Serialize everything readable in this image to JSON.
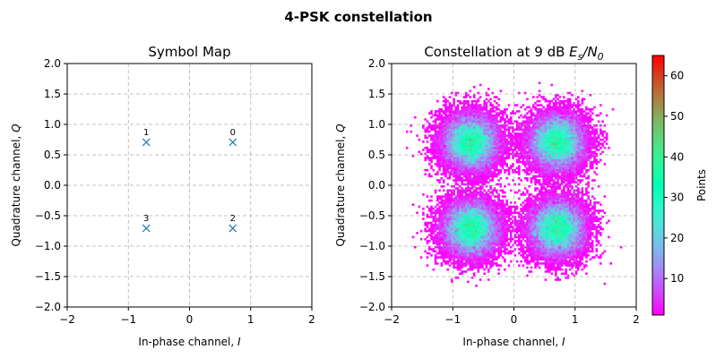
{
  "figure": {
    "title": "4-PSK constellation"
  },
  "chart_data": [
    {
      "type": "scatter",
      "title": "Symbol Map",
      "xlabel": "In-phase channel, I",
      "ylabel": "Quadrature channel, Q",
      "xlim": [
        -2,
        2
      ],
      "ylim": [
        -2,
        2
      ],
      "xticks": [
        -2,
        -1,
        0,
        1,
        2
      ],
      "yticks": [
        -2.0,
        -1.5,
        -1.0,
        -0.5,
        0.0,
        0.5,
        1.0,
        1.5,
        2.0
      ],
      "xtick_labels": [
        "−2",
        "−1",
        "0",
        "1",
        "2"
      ],
      "ytick_labels": [
        "−2.0",
        "−1.5",
        "−1.0",
        "−0.5",
        "0.0",
        "0.5",
        "1.0",
        "1.5",
        "2.0"
      ],
      "grid": true,
      "marker": "x",
      "color": "#1f77b4",
      "points": [
        {
          "label": "0",
          "x": 0.707,
          "y": 0.707
        },
        {
          "label": "1",
          "x": -0.707,
          "y": 0.707
        },
        {
          "label": "2",
          "x": 0.707,
          "y": -0.707
        },
        {
          "label": "3",
          "x": -0.707,
          "y": -0.707
        }
      ]
    },
    {
      "type": "heatmap",
      "title_prefix": "Constellation at 9 dB ",
      "title_math": "Es/N0",
      "xlabel": "In-phase channel, I",
      "ylabel": "Quadrature channel, Q",
      "xlim": [
        -2,
        2
      ],
      "ylim": [
        -2,
        2
      ],
      "xticks": [
        -2,
        -1,
        0,
        1,
        2
      ],
      "yticks": [
        -2.0,
        -1.5,
        -1.0,
        -0.5,
        0.0,
        0.5,
        1.0,
        1.5,
        2.0
      ],
      "xtick_labels": [
        "−2",
        "−1",
        "0",
        "1",
        "2"
      ],
      "ytick_labels": [
        "−2.0",
        "−1.5",
        "−1.0",
        "−0.5",
        "0.0",
        "0.5",
        "1.0",
        "1.5",
        "2.0"
      ],
      "grid": true,
      "colormap": "rainbow",
      "noise_sigma": 0.25,
      "cluster_centers": [
        [
          0.707,
          0.707
        ],
        [
          -0.707,
          0.707
        ],
        [
          0.707,
          -0.707
        ],
        [
          -0.707,
          -0.707
        ]
      ],
      "colorbar": {
        "label": "Points",
        "min": 1,
        "max": 65,
        "ticks": [
          10,
          20,
          30,
          40,
          50,
          60
        ],
        "tick_labels": [
          "10",
          "20",
          "30",
          "40",
          "50",
          "60"
        ]
      }
    }
  ]
}
